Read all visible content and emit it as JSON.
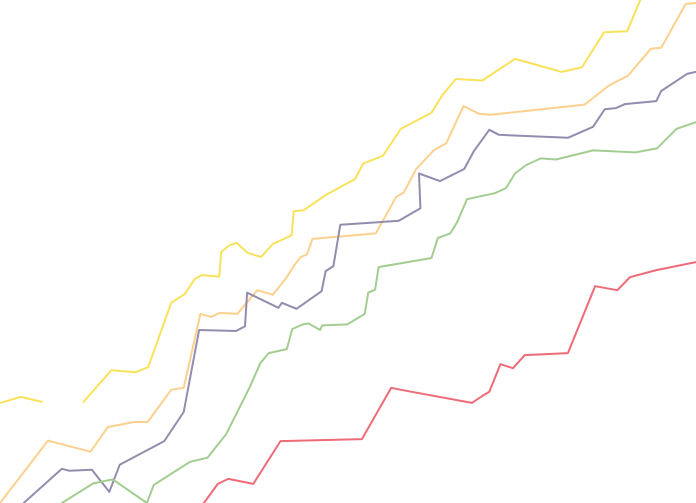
{
  "chart_data": {
    "type": "line",
    "title": "",
    "xlabel": "",
    "ylabel": "",
    "grid": false,
    "legend": "none",
    "xlim": [
      0,
      100
    ],
    "ylim": [
      0,
      100
    ],
    "series": [
      {
        "color": "#f9e25b",
        "segments": [
          [
            [
              0,
              19.9
            ],
            [
              3,
              21.1
            ],
            [
              6,
              20.1
            ]
          ],
          [
            [
              12,
              20.1
            ],
            [
              16,
              26.4
            ],
            [
              19.5,
              26.0
            ],
            [
              21.3,
              27.0
            ],
            [
              24.6,
              39.8
            ],
            [
              26.6,
              41.6
            ],
            [
              28,
              44.6
            ],
            [
              29,
              45.3
            ],
            [
              31.5,
              45.0
            ],
            [
              31.8,
              49.9
            ],
            [
              33,
              51.3
            ],
            [
              34,
              51.7
            ],
            [
              35.6,
              49.7
            ],
            [
              37.5,
              48.9
            ],
            [
              39.2,
              51.5
            ],
            [
              41.9,
              53.2
            ],
            [
              42.2,
              58.0
            ],
            [
              43.6,
              58.2
            ],
            [
              47,
              61.4
            ],
            [
              51,
              64.4
            ],
            [
              52.2,
              67.5
            ],
            [
              55,
              69.0
            ],
            [
              57.6,
              74.4
            ],
            [
              62,
              77.6
            ],
            [
              63.5,
              81.0
            ],
            [
              65.5,
              84.3
            ],
            [
              69.3,
              84.0
            ],
            [
              74,
              88.3
            ],
            [
              80.7,
              85.7
            ],
            [
              83.6,
              86.6
            ],
            [
              86.8,
              93.6
            ],
            [
              90.1,
              93.8
            ],
            [
              92,
              100
            ]
          ]
        ]
      },
      {
        "color": "#fcd08e",
        "segments": [
          [
            [
              0,
              0
            ],
            [
              6.9,
              12.4
            ],
            [
              13,
              10.2
            ],
            [
              15.5,
              15.1
            ],
            [
              19.3,
              16.1
            ],
            [
              21.2,
              16.1
            ],
            [
              24.6,
              22.5
            ],
            [
              26.4,
              22.9
            ],
            [
              28.8,
              37.6
            ],
            [
              30.3,
              37.0
            ],
            [
              31.6,
              37.8
            ],
            [
              34.1,
              37.6
            ],
            [
              35.3,
              39.6
            ],
            [
              37,
              42.3
            ],
            [
              39.2,
              41.4
            ],
            [
              41.2,
              44.9
            ],
            [
              42.2,
              47.1
            ],
            [
              43.2,
              48.9
            ],
            [
              44.1,
              49.4
            ],
            [
              44.9,
              52.5
            ],
            [
              54,
              53.6
            ],
            [
              56.9,
              60.8
            ],
            [
              58,
              61.7
            ],
            [
              59.8,
              66.4
            ],
            [
              62.3,
              70.1
            ],
            [
              64.1,
              71.5
            ],
            [
              66.6,
              78.9
            ],
            [
              68.8,
              77.4
            ],
            [
              70.6,
              77.2
            ],
            [
              84,
              79.2
            ],
            [
              87.4,
              82.9
            ],
            [
              88.7,
              83.9
            ],
            [
              90.2,
              84.9
            ],
            [
              93.5,
              90.3
            ],
            [
              95,
              90.5
            ],
            [
              98.5,
              99.2
            ],
            [
              100,
              99.4
            ]
          ]
        ]
      },
      {
        "color": "#948cae",
        "segments": [
          [
            [
              3.4,
              0
            ],
            [
              8.9,
              6.8
            ],
            [
              10,
              6.4
            ],
            [
              13.2,
              6.6
            ],
            [
              15.7,
              2.2
            ],
            [
              17.2,
              7.6
            ],
            [
              23.6,
              12.3
            ],
            [
              26.4,
              18.1
            ],
            [
              28.6,
              34.4
            ],
            [
              33.9,
              34.2
            ],
            [
              35.2,
              35.1
            ],
            [
              35.5,
              41.8
            ],
            [
              40,
              38.8
            ],
            [
              40.5,
              39.8
            ],
            [
              42.6,
              38.6
            ],
            [
              46.2,
              42.1
            ],
            [
              46.8,
              46.1
            ],
            [
              47.9,
              47.1
            ],
            [
              48.9,
              55.3
            ],
            [
              57.3,
              56.1
            ],
            [
              60.4,
              58.6
            ],
            [
              60.2,
              65.5
            ],
            [
              63.2,
              64.0
            ],
            [
              66.7,
              66.4
            ],
            [
              68.1,
              70.0
            ],
            [
              70.3,
              74.2
            ],
            [
              71.7,
              73.2
            ],
            [
              81.6,
              72.6
            ],
            [
              85.2,
              74.8
            ],
            [
              86.9,
              78.3
            ],
            [
              88.5,
              78.5
            ],
            [
              89.8,
              79.3
            ],
            [
              94.3,
              79.9
            ],
            [
              95,
              81.9
            ],
            [
              98.7,
              85.3
            ],
            [
              100,
              85.7
            ]
          ]
        ]
      },
      {
        "color": "#a3cd91",
        "segments": [
          [
            [
              8.9,
              0
            ],
            [
              13.4,
              3.9
            ],
            [
              16.2,
              4.7
            ],
            [
              21.1,
              0
            ],
            [
              22.1,
              3.6
            ],
            [
              27.3,
              8.2
            ],
            [
              29.8,
              9.0
            ],
            [
              32.5,
              13.7
            ],
            [
              35.9,
              23.1
            ],
            [
              37.4,
              27.8
            ],
            [
              38.6,
              29.8
            ],
            [
              41.2,
              30.6
            ],
            [
              42,
              34.6
            ],
            [
              43.5,
              35.5
            ],
            [
              44.3,
              35.7
            ],
            [
              46,
              34.4
            ],
            [
              46.3,
              35.3
            ],
            [
              49.9,
              35.5
            ],
            [
              52.4,
              37.6
            ],
            [
              52.9,
              41.8
            ],
            [
              53.9,
              42.4
            ],
            [
              54.4,
              46.9
            ],
            [
              62,
              48.7
            ],
            [
              62.9,
              52.7
            ],
            [
              64.7,
              53.6
            ],
            [
              65.7,
              55.9
            ],
            [
              67.1,
              60.4
            ],
            [
              71.1,
              61.6
            ],
            [
              72.7,
              62.6
            ],
            [
              74,
              65.5
            ],
            [
              75.6,
              67.2
            ],
            [
              77.7,
              68.5
            ],
            [
              79.9,
              68.3
            ],
            [
              85.2,
              70.1
            ],
            [
              91.3,
              69.7
            ],
            [
              94.4,
              70.5
            ],
            [
              97.2,
              74.4
            ],
            [
              100,
              75.7
            ]
          ]
        ]
      },
      {
        "color": "#ee6b78",
        "segments": [
          [
            [
              29.3,
              0
            ],
            [
              31.3,
              3.8
            ],
            [
              32.8,
              4.8
            ],
            [
              36.4,
              3.8
            ],
            [
              40.3,
              12.3
            ],
            [
              52,
              12.7
            ],
            [
              56.2,
              22.9
            ],
            [
              57.6,
              22.5
            ],
            [
              67.8,
              19.9
            ],
            [
              69.3,
              21.3
            ],
            [
              70.3,
              22.1
            ],
            [
              71.9,
              27.6
            ],
            [
              73.7,
              26.8
            ],
            [
              75.4,
              29.4
            ],
            [
              81.6,
              29.8
            ],
            [
              85.5,
              43.1
            ],
            [
              88.7,
              42.3
            ],
            [
              90.5,
              44.9
            ],
            [
              94.3,
              46.3
            ],
            [
              100,
              47.9
            ]
          ]
        ]
      }
    ]
  }
}
